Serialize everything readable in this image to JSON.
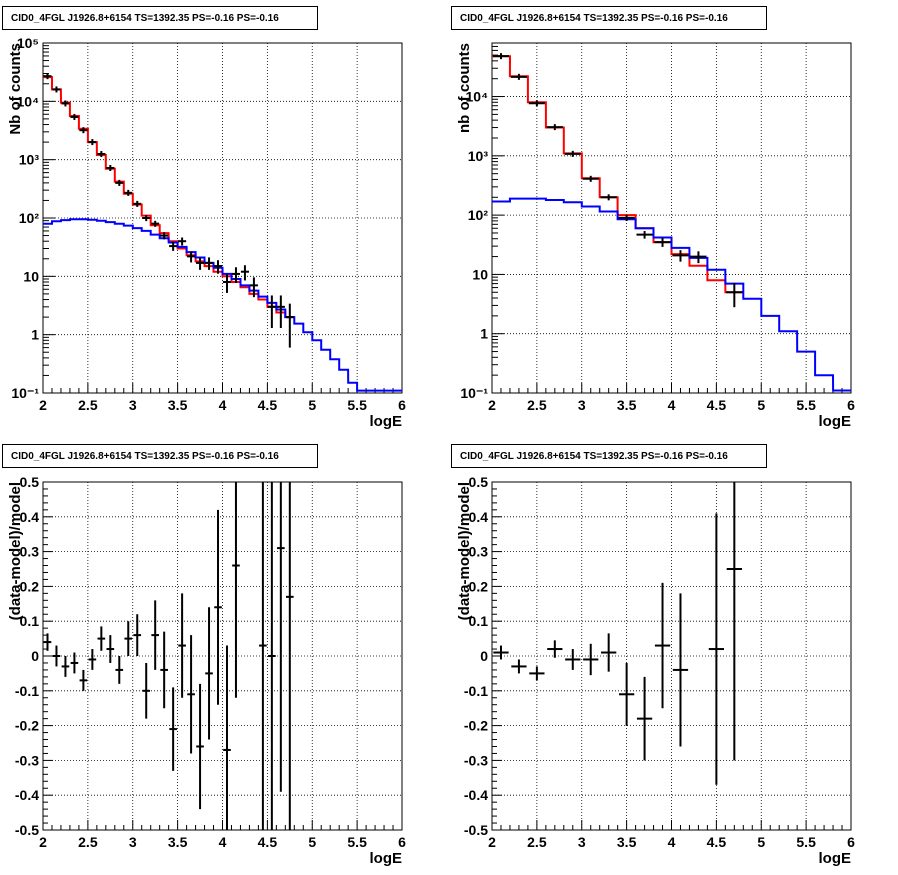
{
  "colors": {
    "total_model": "#ff0000",
    "component_model": "#0000ff",
    "data": "#000000",
    "grid": "#000000"
  },
  "panels": [
    {
      "title": "CID0_4FGL J1926.8+6154 TS=1392.35 PS=-0.16 PS=-0.16"
    },
    {
      "title": "CID0_4FGL J1926.8+6154 TS=1392.35 PS=-0.16 PS=-0.16"
    },
    {
      "title": "CID0_4FGL J1926.8+6154 TS=1392.35 PS=-0.16 PS=-0.16"
    },
    {
      "title": "CID0_4FGL J1926.8+6154 TS=1392.35 PS=-0.16 PS=-0.16"
    }
  ],
  "chart_data": [
    {
      "type": "line",
      "xlabel": "logE",
      "ylabel": "Nb of counts",
      "xlim": [
        2,
        6
      ],
      "ylim": [
        0.1,
        100000
      ],
      "yscale": "log",
      "grid": true,
      "x_ticks": [
        "2",
        "2.5",
        "3",
        "3.5",
        "4",
        "4.5",
        "5",
        "5.5",
        "6"
      ],
      "y_ticks": [
        "10⁻¹",
        "1",
        "10",
        "10²",
        "10³",
        "10⁴",
        "10⁵"
      ],
      "series": [
        {
          "style": "red-step",
          "bin_width": 0.1,
          "x": [
            2.05,
            2.15,
            2.25,
            2.35,
            2.45,
            2.55,
            2.65,
            2.75,
            2.85,
            2.95,
            3.05,
            3.15,
            3.25,
            3.35,
            3.45,
            3.55,
            3.65,
            3.75,
            3.85,
            3.95,
            4.05,
            4.15,
            4.25,
            4.35,
            4.45,
            4.55,
            4.65,
            4.75
          ],
          "y": [
            26000,
            16000,
            9500,
            5600,
            3400,
            2000,
            1200,
            700,
            420,
            260,
            170,
            110,
            75,
            55,
            40,
            30,
            23,
            18,
            15,
            12,
            10,
            8,
            6.5,
            5,
            4,
            3,
            2.4,
            2
          ]
        },
        {
          "style": "blue-step",
          "bin_width": 0.1,
          "x": [
            2.05,
            2.15,
            2.25,
            2.35,
            2.45,
            2.55,
            2.65,
            2.75,
            2.85,
            2.95,
            3.05,
            3.15,
            3.25,
            3.35,
            3.45,
            3.55,
            3.65,
            3.75,
            3.85,
            3.95,
            4.05,
            4.15,
            4.25,
            4.35,
            4.45,
            4.55,
            4.65,
            4.75,
            4.85,
            4.95,
            5.05,
            5.15,
            5.25,
            5.35,
            5.45,
            5.55,
            5.65,
            5.75,
            5.85,
            5.95
          ],
          "y": [
            80,
            88,
            92,
            95,
            95,
            93,
            90,
            85,
            80,
            74,
            67,
            60,
            52,
            45,
            38,
            32,
            26,
            21,
            17,
            14,
            11,
            9,
            7,
            5.7,
            4.5,
            3.5,
            2.7,
            2,
            1.55,
            1.1,
            0.8,
            0.55,
            0.38,
            0.25,
            0.15,
            0.11,
            0.11,
            0.11,
            0.11,
            0.11
          ]
        },
        {
          "style": "data-points",
          "x": [
            2.05,
            2.15,
            2.25,
            2.35,
            2.45,
            2.55,
            2.65,
            2.75,
            2.85,
            2.95,
            3.05,
            3.15,
            3.25,
            3.35,
            3.45,
            3.55,
            3.65,
            3.75,
            3.85,
            3.95,
            4.05,
            4.15,
            4.25,
            4.35,
            4.45,
            4.55,
            4.65,
            4.75
          ],
          "y": [
            27000,
            16000,
            9200,
            5400,
            3200,
            2000,
            1250,
            720,
            400,
            270,
            175,
            100,
            80,
            50,
            33,
            40,
            22,
            17,
            17,
            15,
            8,
            11,
            12,
            7,
            0,
            3,
            3,
            2
          ],
          "yerr": [
            160,
            125,
            95,
            73,
            56,
            45,
            35,
            27,
            20,
            16,
            13,
            10,
            9,
            7,
            5.7,
            6.3,
            4.7,
            4.1,
            4.1,
            3.9,
            2.8,
            3.3,
            3.5,
            2.6,
            0,
            1.7,
            1.7,
            1.4
          ]
        }
      ]
    },
    {
      "type": "line",
      "xlabel": "logE",
      "ylabel": "nb of counts",
      "xlim": [
        2,
        6
      ],
      "ylim": [
        0.1,
        80000
      ],
      "yscale": "log",
      "grid": true,
      "x_ticks": [
        "2",
        "2.5",
        "3",
        "3.5",
        "4",
        "4.5",
        "5",
        "5.5",
        "6"
      ],
      "y_ticks": [
        "10⁻¹",
        "1",
        "10",
        "10²",
        "10³",
        "10⁴"
      ],
      "series": [
        {
          "style": "red-step",
          "bin_width": 0.2,
          "x": [
            2.1,
            2.3,
            2.5,
            2.7,
            2.9,
            3.1,
            3.3,
            3.5,
            3.7,
            3.9,
            4.1,
            4.3,
            4.5,
            4.7
          ],
          "y": [
            48000,
            22000,
            8000,
            3000,
            1100,
            420,
            200,
            100,
            60,
            35,
            22,
            14,
            8,
            5
          ]
        },
        {
          "style": "blue-step",
          "bin_width": 0.2,
          "x": [
            2.1,
            2.3,
            2.5,
            2.7,
            2.9,
            3.1,
            3.3,
            3.5,
            3.7,
            3.9,
            4.1,
            4.3,
            4.5,
            4.7,
            4.9,
            5.1,
            5.3,
            5.5,
            5.7,
            5.9
          ],
          "y": [
            170,
            190,
            190,
            180,
            165,
            140,
            115,
            85,
            60,
            42,
            28,
            19,
            12,
            7,
            3.9,
            2,
            1.1,
            0.5,
            0.2,
            0.11
          ]
        },
        {
          "style": "data-points",
          "x": [
            2.1,
            2.3,
            2.5,
            2.7,
            2.9,
            3.1,
            3.3,
            3.5,
            3.7,
            3.9,
            4.1,
            4.3,
            4.5,
            4.7
          ],
          "y": [
            48000,
            21500,
            7700,
            3050,
            1080,
            410,
            200,
            90,
            47,
            35,
            21,
            20,
            0,
            5
          ],
          "yerr": [
            220,
            147,
            88,
            55,
            33,
            20,
            14,
            9.5,
            6.9,
            5.9,
            4.6,
            4.5,
            0,
            2.2
          ]
        }
      ]
    },
    {
      "type": "scatter",
      "xlabel": "logE",
      "ylabel": "(data-model)/model",
      "xlim": [
        2,
        6
      ],
      "ylim": [
        -0.5,
        0.5
      ],
      "grid": true,
      "x_ticks": [
        "2",
        "2.5",
        "3",
        "3.5",
        "4",
        "4.5",
        "5",
        "5.5",
        "6"
      ],
      "y_ticks": [
        "-0.5",
        "-0.4",
        "-0.3",
        "-0.2",
        "-0.1",
        "0",
        "0.1",
        "0.2",
        "0.3",
        "0.4",
        "0.5"
      ],
      "bin_width": 0.1,
      "x": [
        2.05,
        2.15,
        2.25,
        2.35,
        2.45,
        2.55,
        2.65,
        2.75,
        2.85,
        2.95,
        3.05,
        3.15,
        3.25,
        3.35,
        3.45,
        3.55,
        3.65,
        3.75,
        3.85,
        3.95,
        4.05,
        4.15,
        4.45,
        4.55,
        4.65,
        4.75
      ],
      "y": [
        0.04,
        0.0,
        -0.03,
        -0.02,
        -0.07,
        -0.01,
        0.05,
        0.02,
        -0.04,
        0.05,
        0.06,
        -0.1,
        0.06,
        -0.04,
        -0.21,
        0.03,
        -0.11,
        -0.26,
        -0.05,
        0.14,
        -0.27,
        0.26,
        0.03,
        0.0,
        0.31,
        0.17
      ],
      "yerr": [
        0.025,
        0.03,
        0.03,
        0.03,
        0.03,
        0.03,
        0.035,
        0.04,
        0.04,
        0.05,
        0.06,
        0.08,
        0.1,
        0.11,
        0.12,
        0.15,
        0.17,
        0.18,
        0.19,
        0.28,
        0.3,
        0.38,
        0.6,
        0.7,
        0.7,
        0.7
      ]
    },
    {
      "type": "scatter",
      "xlabel": "logE",
      "ylabel": "(data-model)/model",
      "xlim": [
        2,
        6
      ],
      "ylim": [
        -0.5,
        0.5
      ],
      "grid": true,
      "x_ticks": [
        "2",
        "2.5",
        "3",
        "3.5",
        "4",
        "4.5",
        "5",
        "5.5",
        "6"
      ],
      "y_ticks": [
        "-0.5",
        "-0.4",
        "-0.3",
        "-0.2",
        "-0.1",
        "0",
        "0.1",
        "0.2",
        "0.3",
        "0.4",
        "0.5"
      ],
      "bin_width": 0.2,
      "x": [
        2.1,
        2.3,
        2.5,
        2.7,
        2.9,
        3.1,
        3.3,
        3.5,
        3.7,
        3.9,
        4.1,
        4.5,
        4.7
      ],
      "y": [
        0.01,
        -0.03,
        -0.05,
        0.02,
        -0.01,
        -0.01,
        0.01,
        -0.11,
        -0.18,
        0.03,
        -0.04,
        0.02,
        0.25
      ],
      "yerr": [
        0.02,
        0.02,
        0.02,
        0.025,
        0.03,
        0.045,
        0.055,
        0.09,
        0.12,
        0.18,
        0.22,
        0.39,
        0.55
      ]
    }
  ]
}
